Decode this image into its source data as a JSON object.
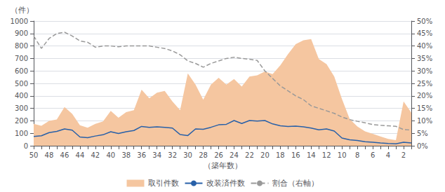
{
  "chart_data": {
    "type": "line",
    "xlabel": "（築年数）",
    "ylabel": "（件）",
    "categories": [
      "50",
      null,
      "48",
      null,
      "46",
      null,
      "44",
      null,
      "42",
      null,
      "40",
      null,
      "38",
      null,
      "36",
      null,
      "34",
      null,
      "32",
      null,
      "30",
      null,
      "28",
      null,
      "26",
      null,
      "24",
      null,
      "22",
      null,
      "20",
      null,
      "18",
      null,
      "16",
      null,
      "14",
      null,
      "12",
      null,
      "10",
      null,
      "8",
      null,
      "6",
      null,
      "4",
      null,
      "2",
      null
    ],
    "series": [
      {
        "name": "取引件数",
        "type": "area",
        "color": "#f5c6a0",
        "values": [
          175,
          160,
          200,
          210,
          310,
          255,
          165,
          145,
          175,
          195,
          280,
          225,
          270,
          285,
          450,
          380,
          425,
          440,
          355,
          285,
          580,
          490,
          370,
          490,
          545,
          490,
          535,
          475,
          555,
          565,
          595,
          575,
          645,
          735,
          815,
          845,
          855,
          695,
          655,
          555,
          375,
          215,
          155,
          115,
          95,
          75,
          55,
          45,
          355,
          265
        ]
      },
      {
        "name": "改装済件数",
        "type": "line",
        "color": "#2860a8",
        "line_style": "solid",
        "values": [
          75,
          80,
          105,
          115,
          135,
          125,
          70,
          65,
          78,
          88,
          112,
          98,
          112,
          122,
          155,
          148,
          152,
          148,
          142,
          90,
          82,
          135,
          132,
          148,
          168,
          172,
          202,
          178,
          202,
          198,
          202,
          175,
          160,
          155,
          157,
          152,
          142,
          128,
          135,
          118,
          62,
          48,
          42,
          32,
          28,
          22,
          18,
          15,
          28,
          22
        ]
      },
      {
        "name": "割合（右軸）",
        "type": "line",
        "color": "#999999",
        "line_style": "dashed",
        "axis": "y2",
        "values": [
          0.44,
          0.39,
          0.43,
          0.45,
          0.455,
          0.44,
          0.42,
          0.415,
          0.395,
          0.4,
          0.4,
          0.397,
          0.4,
          0.4,
          0.4,
          0.4,
          0.395,
          0.39,
          0.38,
          0.365,
          0.34,
          0.33,
          0.315,
          0.33,
          0.34,
          0.35,
          0.355,
          0.35,
          0.347,
          0.342,
          0.3,
          0.27,
          0.24,
          0.22,
          0.2,
          0.185,
          0.16,
          0.15,
          0.14,
          0.13,
          0.115,
          0.105,
          0.098,
          0.092,
          0.085,
          0.082,
          0.08,
          0.078,
          0.065,
          0.063
        ]
      }
    ],
    "ylim": [
      0,
      1000
    ],
    "yticks": [
      0,
      100,
      200,
      300,
      400,
      500,
      600,
      700,
      800,
      900,
      1000
    ],
    "y2lim": [
      0,
      0.5
    ],
    "y2ticks": [
      {
        "value": 0,
        "label": "0%"
      },
      {
        "value": 0.05,
        "label": "5%"
      },
      {
        "value": 0.1,
        "label": "10%"
      },
      {
        "value": 0.15,
        "label": "15%"
      },
      {
        "value": 0.2,
        "label": "20%"
      },
      {
        "value": 0.25,
        "label": "25%"
      },
      {
        "value": 0.3,
        "label": "30%"
      },
      {
        "value": 0.35,
        "label": "35%"
      },
      {
        "value": 0.4,
        "label": "40%"
      },
      {
        "value": 0.45,
        "label": "45%"
      },
      {
        "value": 0.5,
        "label": "50%"
      }
    ],
    "grid": true,
    "legend": "bottom"
  }
}
